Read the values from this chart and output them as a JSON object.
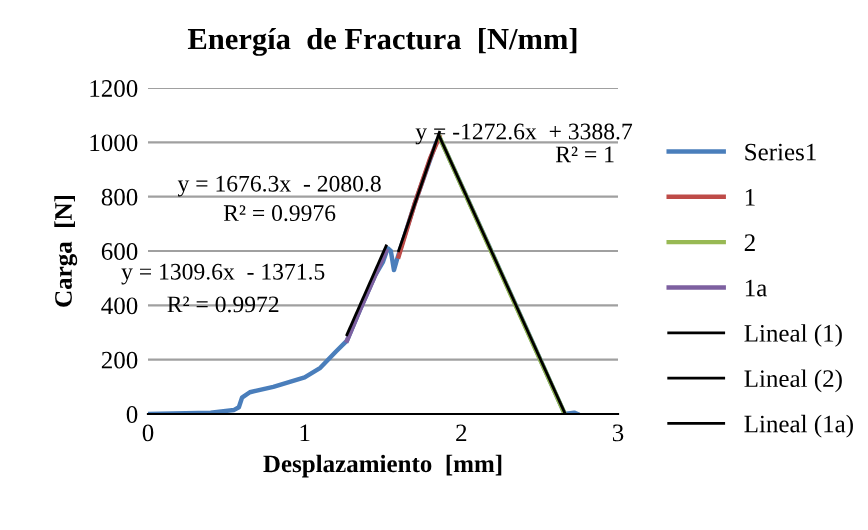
{
  "chart_data": {
    "type": "line",
    "title": "Energía  de Fractura  [N/mm]",
    "xlabel": "Desplazamiento  [mm]",
    "ylabel": "Carga  [N]",
    "xlim": [
      0,
      3
    ],
    "xticks": [
      0,
      1,
      2,
      3
    ],
    "ylim": [
      0,
      1200
    ],
    "yticks": [
      0,
      200,
      400,
      600,
      800,
      1000,
      1200
    ],
    "grid": "y",
    "legend": "right",
    "marker": "none",
    "series": [
      {
        "name": "Series1",
        "color": "#4a7ebb",
        "x": [
          0,
          0.4,
          0.55,
          0.58,
          0.6,
          0.65,
          0.8,
          1.0,
          1.1,
          1.2,
          1.27,
          1.35,
          1.45,
          1.5,
          1.53,
          1.55,
          1.57,
          1.59,
          1.7,
          1.84,
          1.86,
          2.0,
          2.2,
          2.4,
          2.66,
          2.72,
          2.74
        ],
        "values": [
          0,
          5,
          15,
          25,
          60,
          80,
          100,
          135,
          170,
          230,
          270,
          380,
          510,
          560,
          610,
          600,
          530,
          570,
          770,
          1000,
          1020,
          843,
          589,
          334,
          0,
          5,
          0
        ]
      },
      {
        "name": "1",
        "color": "#be4b48",
        "x": [
          1.6,
          1.7,
          1.8,
          1.86
        ],
        "values": [
          580,
          770,
          940,
          1020
        ]
      },
      {
        "name": "2",
        "color": "#98b954",
        "x": [
          1.86,
          2.66
        ],
        "values": [
          1020,
          0
        ]
      },
      {
        "name": "1a",
        "color": "#7d60a0",
        "x": [
          1.27,
          1.35,
          1.45,
          1.52
        ],
        "values": [
          270,
          380,
          510,
          600
        ]
      },
      {
        "name": "Lineal (1)",
        "color": "#000000",
        "x": [
          1.6,
          1.86
        ],
        "values": [
          601,
          1037
        ]
      },
      {
        "name": "Lineal (2)",
        "color": "#000000",
        "x": [
          1.86,
          2.66
        ],
        "values": [
          1022,
          4
        ]
      },
      {
        "name": "Lineal (1a)",
        "color": "#000000",
        "x": [
          1.27,
          1.52
        ],
        "values": [
          292,
          619
        ]
      }
    ],
    "annotations": [
      "y = 1676.3x  - 2080.8",
      "R² = 0.9976",
      "y = 1309.6x  - 1371.5",
      "R² = 0.9972",
      "y = -1272.6x  + 3388.7",
      "R² = 1"
    ]
  }
}
